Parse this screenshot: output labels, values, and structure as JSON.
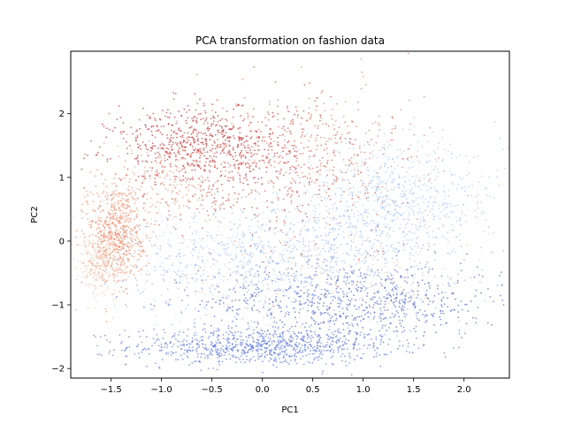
{
  "chart_data": {
    "type": "scatter",
    "title": "PCA transformation on fashion data",
    "xlabel": "PC1",
    "ylabel": "PC2",
    "xlim": [
      -1.9,
      2.45
    ],
    "ylim": [
      -2.15,
      2.98
    ],
    "xticks": [
      -1.5,
      -1.0,
      -0.5,
      0.0,
      0.5,
      1.0,
      1.5,
      2.0
    ],
    "xtick_labels": [
      "−1.5",
      "−1.0",
      "−0.5",
      "0.0",
      "0.5",
      "1.0",
      "1.5",
      "2.0"
    ],
    "yticks": [
      -2,
      -1,
      0,
      1,
      2
    ],
    "ytick_labels": [
      "−2",
      "−1",
      "0",
      "1",
      "2"
    ],
    "grid": false,
    "legend": "none",
    "colormap": "coolwarm",
    "point_color_by": "class label",
    "clusters": [
      {
        "center": [
          0.0,
          -1.65
        ],
        "spread": [
          0.65,
          0.15
        ],
        "count": 900,
        "color": "#5a77db"
      },
      {
        "center": [
          0.9,
          -0.95
        ],
        "spread": [
          0.75,
          0.3
        ],
        "count": 750,
        "color": "#4a5fc8"
      },
      {
        "center": [
          0.3,
          -0.3
        ],
        "spread": [
          0.8,
          0.45
        ],
        "count": 700,
        "color": "#8fb1f5"
      },
      {
        "center": [
          1.3,
          0.6
        ],
        "spread": [
          0.55,
          0.45
        ],
        "count": 800,
        "color": "#aac7fa"
      },
      {
        "center": [
          -0.5,
          -0.2
        ],
        "spread": [
          0.6,
          0.5
        ],
        "count": 350,
        "color": "#c8d9f3"
      },
      {
        "center": [
          -0.6,
          1.5
        ],
        "spread": [
          0.45,
          0.3
        ],
        "count": 600,
        "color": "#c0282d"
      },
      {
        "center": [
          0.0,
          1.2
        ],
        "spread": [
          0.6,
          0.5
        ],
        "count": 450,
        "color": "#d24b40"
      },
      {
        "center": [
          0.6,
          1.4
        ],
        "spread": [
          0.5,
          0.6
        ],
        "count": 250,
        "color": "#e07b62"
      },
      {
        "center": [
          -1.45,
          0.15
        ],
        "spread": [
          0.14,
          0.4
        ],
        "count": 650,
        "color": "#ee8866"
      },
      {
        "center": [
          -1.6,
          -0.35
        ],
        "spread": [
          0.12,
          0.25
        ],
        "count": 300,
        "color": "#f1cbb6"
      },
      {
        "center": [
          0.6,
          -0.5
        ],
        "spread": [
          0.7,
          0.4
        ],
        "count": 200,
        "color": "#f5c4ad"
      },
      {
        "center": [
          -0.85,
          0.9
        ],
        "spread": [
          0.3,
          0.35
        ],
        "count": 200,
        "color": "#e8977a"
      }
    ]
  }
}
